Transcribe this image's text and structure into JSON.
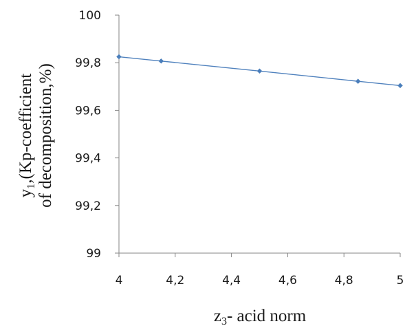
{
  "chart_data": {
    "type": "line",
    "x": [
      4,
      4.15,
      4.5,
      4.85,
      5
    ],
    "series": [
      {
        "values": [
          99.825,
          99.807,
          99.765,
          99.722,
          99.704
        ]
      }
    ],
    "xlim": [
      4,
      5
    ],
    "ylim": [
      99,
      100
    ],
    "xticks": [
      "4",
      "4,2",
      "4,4",
      "4,6",
      "4,8",
      "5"
    ],
    "yticks": [
      "99",
      "99,2",
      "99,4",
      "99,6",
      "99,8",
      "100"
    ],
    "xlabel": {
      "main": "z",
      "sub": "3",
      "rest": "- acid norm"
    },
    "ylabel": {
      "line1_main": "y",
      "line1_sub": "1",
      "line1_rest": ",(Kp-coefficient",
      "line2": "of decomposition,%)"
    },
    "grid": false,
    "colors": {
      "series": "#4f81bd",
      "marker": "#4a7ebb",
      "axis": "#868686"
    }
  }
}
